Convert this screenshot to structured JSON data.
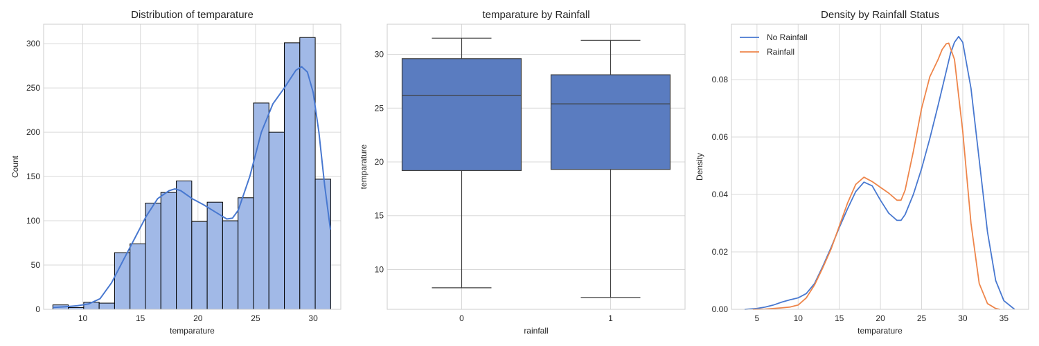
{
  "chart_data": [
    {
      "type": "histogram",
      "title": "Distribution of temparature",
      "xlabel": "temparature",
      "ylabel": "Count",
      "xlim": [
        6.6,
        32.4
      ],
      "ylim": [
        0,
        322
      ],
      "xticks": [
        10,
        15,
        20,
        25,
        30
      ],
      "yticks": [
        0,
        50,
        100,
        150,
        200,
        250,
        300
      ],
      "bin_edges": [
        7.4,
        8.74,
        10.08,
        11.42,
        12.76,
        14.1,
        15.44,
        16.78,
        18.12,
        19.46,
        20.8,
        22.14,
        23.48,
        24.82,
        26.16,
        27.5,
        28.84,
        30.18,
        31.52
      ],
      "counts": [
        5,
        2,
        8,
        7,
        64,
        74,
        120,
        132,
        145,
        99,
        121,
        100,
        126,
        233,
        200,
        301,
        307,
        147
      ],
      "kde": {
        "x": [
          7.4,
          8.5,
          9.5,
          10.5,
          11.5,
          12.5,
          13.5,
          14.5,
          15.5,
          16.5,
          17.5,
          18.0,
          18.5,
          19.5,
          20.5,
          21.5,
          22.5,
          23.0,
          23.5,
          24.5,
          25.5,
          26.5,
          27.5,
          28.0,
          28.5,
          29.0,
          29.5,
          30.0,
          30.5,
          31.0,
          31.5
        ],
        "y": [
          2,
          3,
          4,
          6,
          12,
          30,
          55,
          80,
          105,
          125,
          134,
          136,
          134,
          125,
          118,
          110,
          102,
          103,
          112,
          150,
          200,
          232,
          250,
          260,
          270,
          274,
          268,
          245,
          200,
          140,
          90
        ]
      },
      "grid": true,
      "bar_color": "#a1b9e7",
      "line_color": "#4878d0"
    },
    {
      "type": "box",
      "title": "temparature by Rainfall",
      "xlabel": "rainfall",
      "ylabel": "temparature",
      "categories": [
        "0",
        "1"
      ],
      "ylim": [
        6.3,
        32.8
      ],
      "yticks": [
        10,
        15,
        20,
        25,
        30
      ],
      "boxes": [
        {
          "whisker_low": 8.3,
          "q1": 19.2,
          "median": 26.2,
          "q3": 29.6,
          "whisker_high": 31.5
        },
        {
          "whisker_low": 7.4,
          "q1": 19.3,
          "median": 25.4,
          "q3": 28.1,
          "whisker_high": 31.3
        }
      ],
      "grid": true,
      "box_color": "#5a7cc0"
    },
    {
      "type": "line",
      "title": "Density by Rainfall Status",
      "xlabel": "temparature",
      "ylabel": "Density",
      "xlim": [
        1.9,
        38.0
      ],
      "ylim": [
        0,
        0.0993
      ],
      "xticks": [
        5,
        10,
        15,
        20,
        25,
        30,
        35
      ],
      "yticks": [
        0.0,
        0.02,
        0.04,
        0.06,
        0.08
      ],
      "ytick_labels": [
        "0.00",
        "0.02",
        "0.04",
        "0.06",
        "0.08"
      ],
      "legend": "top-left",
      "grid": true,
      "series": [
        {
          "name": "No Rainfall",
          "color": "#4878d0",
          "x": [
            3.5,
            5,
            6,
            7,
            8,
            9,
            10,
            11,
            12,
            13,
            14,
            15,
            16,
            17,
            18,
            19,
            20,
            21,
            22,
            22.5,
            23,
            24,
            25,
            26,
            27,
            28,
            28.5,
            29,
            29.5,
            30,
            31,
            32,
            33,
            34,
            35,
            36.3
          ],
          "y": [
            0.0,
            0.0003,
            0.0008,
            0.0015,
            0.0025,
            0.0033,
            0.004,
            0.0055,
            0.009,
            0.015,
            0.0215,
            0.0285,
            0.035,
            0.041,
            0.0443,
            0.043,
            0.038,
            0.0335,
            0.031,
            0.031,
            0.033,
            0.04,
            0.049,
            0.0595,
            0.071,
            0.083,
            0.089,
            0.093,
            0.095,
            0.093,
            0.077,
            0.052,
            0.027,
            0.01,
            0.003,
            0.0
          ]
        },
        {
          "name": "Rainfall",
          "color": "#ee854a",
          "x": [
            4.5,
            6,
            7,
            8,
            9,
            10,
            11,
            12,
            13,
            14,
            15,
            16,
            17,
            18,
            19,
            20,
            21,
            22,
            22.5,
            23,
            24,
            25,
            26,
            27,
            27.5,
            28,
            28.3,
            29,
            30,
            31,
            32,
            33,
            34,
            34.5
          ],
          "y": [
            0.0,
            0.0001,
            0.0003,
            0.0005,
            0.0008,
            0.0015,
            0.004,
            0.0085,
            0.0145,
            0.021,
            0.029,
            0.037,
            0.0435,
            0.046,
            0.0445,
            0.0425,
            0.0405,
            0.038,
            0.038,
            0.0415,
            0.055,
            0.07,
            0.081,
            0.087,
            0.0905,
            0.0925,
            0.0927,
            0.087,
            0.062,
            0.03,
            0.009,
            0.002,
            0.0003,
            0.0
          ]
        }
      ]
    }
  ]
}
